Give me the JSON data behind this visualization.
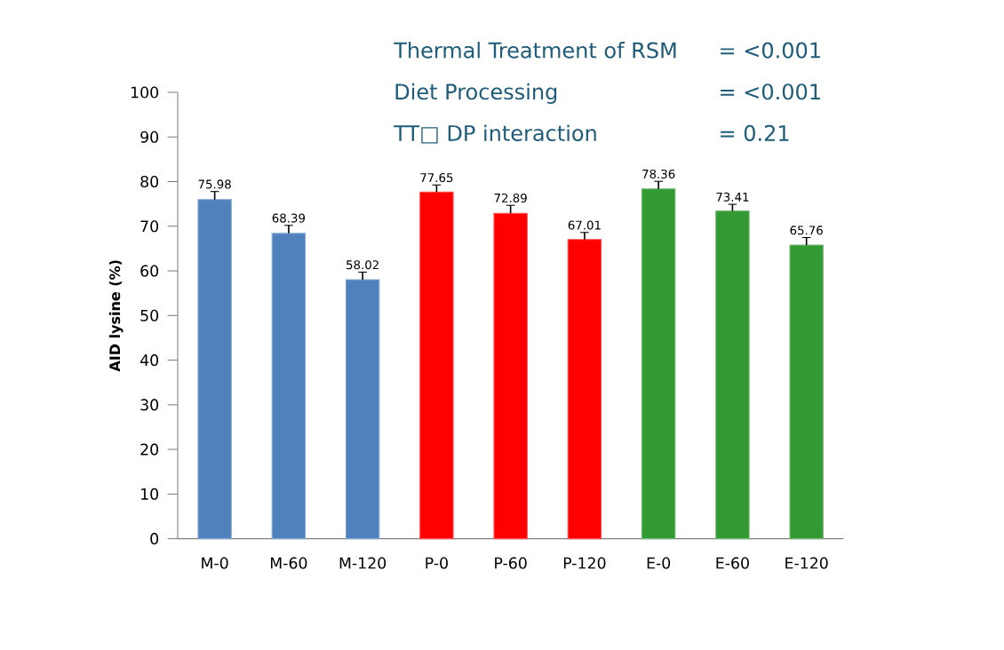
{
  "chart_data": {
    "type": "bar",
    "ylabel": "AID lysine (%)",
    "categories": [
      "M-0",
      "M-60",
      "M-120",
      "P-0",
      "P-60",
      "P-120",
      "E-0",
      "E-60",
      "E-120"
    ],
    "values": [
      75.98,
      68.39,
      58.02,
      77.65,
      72.89,
      67.01,
      78.36,
      73.41,
      65.76
    ],
    "errors": [
      1.8,
      1.8,
      1.7,
      1.6,
      1.8,
      1.6,
      1.7,
      1.5,
      1.7
    ],
    "colors": [
      "#4f81bd",
      "#4f81bd",
      "#4f81bd",
      "#ff0000",
      "#ff0000",
      "#ff0000",
      "#339933",
      "#339933",
      "#339933"
    ],
    "ylim": [
      0,
      100
    ],
    "yticks": [
      0,
      10,
      20,
      30,
      40,
      50,
      60,
      70,
      80,
      90,
      100
    ],
    "data_labels": true,
    "grid": false,
    "annotations": [
      "Thermal Treatment of RSM",
      "= <0.001",
      "Diet Processing",
      "= <0.001",
      "TT□   DP interaction",
      "= 0.21"
    ]
  }
}
